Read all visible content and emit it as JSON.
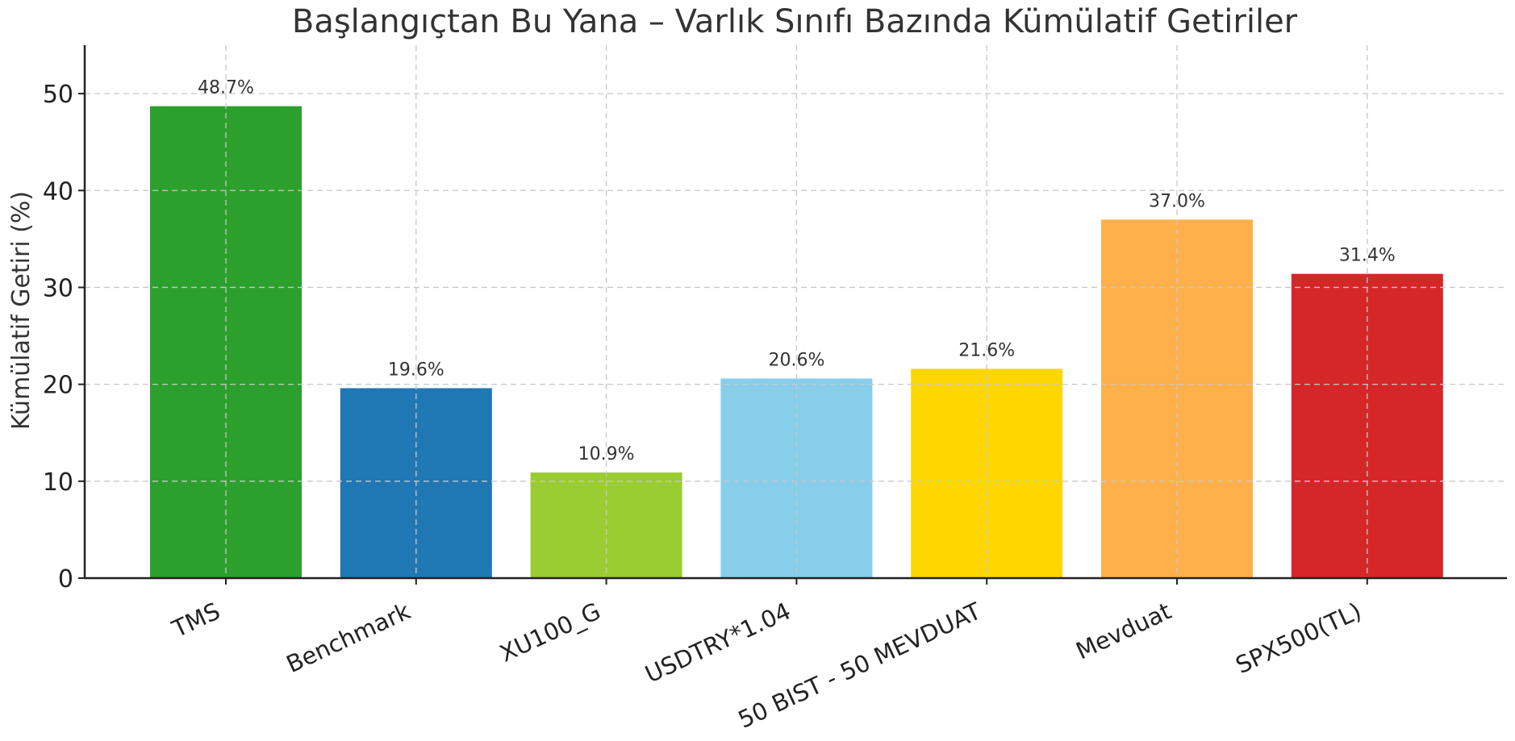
{
  "chart_data": {
    "type": "bar",
    "title": "Başlangıçtan Bu Yana – Varlık Sınıfı Bazında Kümülatif Getiriler",
    "xlabel": "",
    "ylabel": "Kümülatif Getiri (%)",
    "ylim": [
      0,
      55
    ],
    "yticks": [
      0,
      10,
      20,
      30,
      40,
      50
    ],
    "grid": true,
    "categories": [
      "TMS",
      "Benchmark",
      "XU100_G",
      "USDTRY*1.04",
      "50 BIST - 50 MEVDUAT",
      "Mevduat",
      "SPX500(TL)"
    ],
    "values": [
      48.7,
      19.6,
      10.9,
      20.6,
      21.6,
      37.0,
      31.4
    ],
    "value_labels": [
      "48.7%",
      "19.6%",
      "10.9%",
      "20.6%",
      "21.6%",
      "37.0%",
      "31.4%"
    ],
    "colors": [
      "#2ca02c",
      "#1f77b4",
      "#9acd32",
      "#87ceeb",
      "#ffd700",
      "#ffb04a",
      "#d62728"
    ]
  }
}
